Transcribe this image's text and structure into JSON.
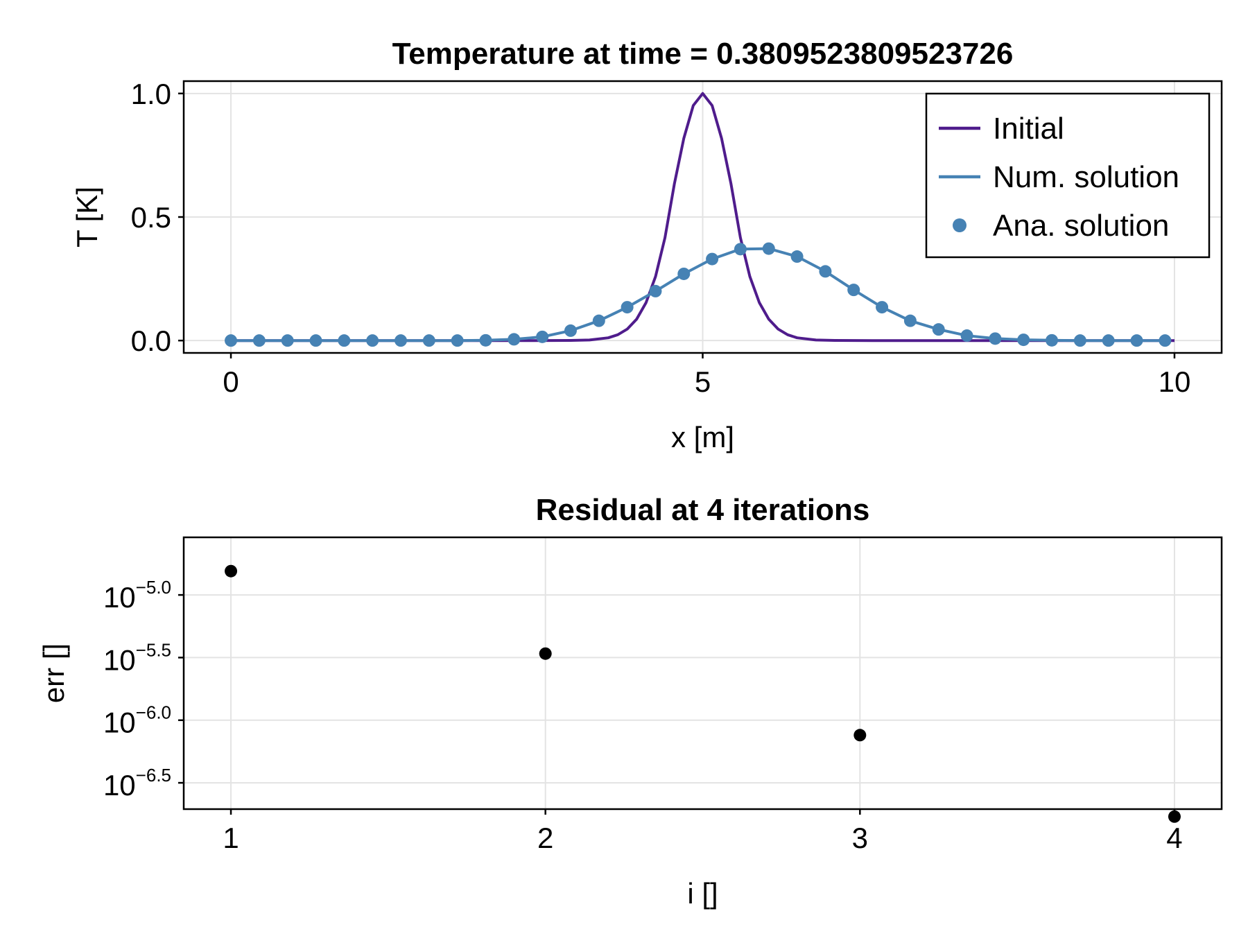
{
  "chart_data": [
    {
      "type": "line",
      "title": "Temperature at time = 0.3809523809523726",
      "xlabel": "x [m]",
      "ylabel": "T [K]",
      "xlim": [
        -0.5,
        10.5
      ],
      "ylim": [
        -0.05,
        1.05
      ],
      "xticks": [
        {
          "value": 0,
          "label": "0"
        },
        {
          "value": 5,
          "label": "5"
        },
        {
          "value": 10,
          "label": "10"
        }
      ],
      "yticks": [
        {
          "value": 0,
          "label": "0.0"
        },
        {
          "value": 0.5,
          "label": "0.5"
        },
        {
          "value": 1,
          "label": "1.0"
        }
      ],
      "grid": true,
      "legend_position": "top-right",
      "series": [
        {
          "name": "Initial",
          "kind": "line",
          "color": "#4f1c8c",
          "x": [
            0,
            3.2,
            3.4,
            3.6,
            3.8,
            4.0,
            4.1,
            4.2,
            4.3,
            4.4,
            4.5,
            4.6,
            4.7,
            4.8,
            4.9,
            5.0,
            5.1,
            5.2,
            5.3,
            5.4,
            5.5,
            5.6,
            5.7,
            5.8,
            5.9,
            6.0,
            6.2,
            6.4,
            6.6,
            6.8,
            10
          ],
          "y": [
            0,
            0.0,
            0.0001,
            0.0004,
            0.0022,
            0.0113,
            0.0235,
            0.0462,
            0.0863,
            0.1534,
            0.2592,
            0.4165,
            0.6347,
            0.8187,
            0.9512,
            1.0,
            0.9512,
            0.8187,
            0.6347,
            0.4165,
            0.2592,
            0.1534,
            0.0863,
            0.0462,
            0.0235,
            0.0113,
            0.0022,
            0.0004,
            0.0001,
            0.0,
            0
          ]
        },
        {
          "name": "Num. solution",
          "kind": "line",
          "color": "#4682b4",
          "x": [
            0,
            0.3,
            0.6,
            0.9,
            1.2,
            1.5,
            1.8,
            2.1,
            2.4,
            2.7,
            3.0,
            3.3,
            3.6,
            3.9,
            4.2,
            4.5,
            4.8,
            5.1,
            5.4,
            5.7,
            6.0,
            6.3,
            6.6,
            6.9,
            7.2,
            7.5,
            7.8,
            8.1,
            8.4,
            8.7,
            9.0,
            9.3,
            9.6,
            9.9
          ],
          "y": [
            0,
            0,
            0,
            0,
            0,
            0,
            0,
            0,
            0,
            0.001,
            0.005,
            0.015,
            0.04,
            0.08,
            0.135,
            0.2,
            0.27,
            0.33,
            0.37,
            0.372,
            0.34,
            0.28,
            0.205,
            0.135,
            0.08,
            0.045,
            0.02,
            0.008,
            0.003,
            0.001,
            0,
            0,
            0,
            0
          ]
        },
        {
          "name": "Ana. solution",
          "kind": "scatter",
          "color": "#4682b4",
          "x": [
            0,
            0.3,
            0.6,
            0.9,
            1.2,
            1.5,
            1.8,
            2.1,
            2.4,
            2.7,
            3.0,
            3.3,
            3.6,
            3.9,
            4.2,
            4.5,
            4.8,
            5.1,
            5.4,
            5.7,
            6.0,
            6.3,
            6.6,
            6.9,
            7.2,
            7.5,
            7.8,
            8.1,
            8.4,
            8.7,
            9.0,
            9.3,
            9.6,
            9.9
          ],
          "y": [
            0,
            0,
            0,
            0,
            0,
            0,
            0,
            0,
            0,
            0.001,
            0.005,
            0.015,
            0.04,
            0.08,
            0.135,
            0.2,
            0.27,
            0.33,
            0.37,
            0.372,
            0.34,
            0.28,
            0.205,
            0.135,
            0.08,
            0.045,
            0.02,
            0.008,
            0.003,
            0.001,
            0,
            0,
            0,
            0
          ]
        }
      ]
    },
    {
      "type": "scatter",
      "title": "Residual at 4 iterations",
      "xlabel": "i []",
      "ylabel": "err []",
      "xlim": [
        0.85,
        4.15
      ],
      "ylim_log10": [
        -6.71,
        -4.54
      ],
      "yscale": "log10",
      "xticks": [
        {
          "value": 1,
          "label": "1"
        },
        {
          "value": 2,
          "label": "2"
        },
        {
          "value": 3,
          "label": "3"
        },
        {
          "value": 4,
          "label": "4"
        }
      ],
      "yticks": [
        {
          "log10": -5.0,
          "base": "10",
          "exp": "−5.0"
        },
        {
          "log10": -5.5,
          "base": "10",
          "exp": "−5.5"
        },
        {
          "log10": -6.0,
          "base": "10",
          "exp": "−6.0"
        },
        {
          "log10": -6.5,
          "base": "10",
          "exp": "−6.5"
        }
      ],
      "grid": true,
      "series": [
        {
          "kind": "scatter",
          "color": "#000000",
          "x": [
            1,
            2,
            3,
            4
          ],
          "y": [
            1.55e-05,
            3.4e-06,
            7.6e-07,
            1.7e-07
          ]
        }
      ]
    }
  ]
}
